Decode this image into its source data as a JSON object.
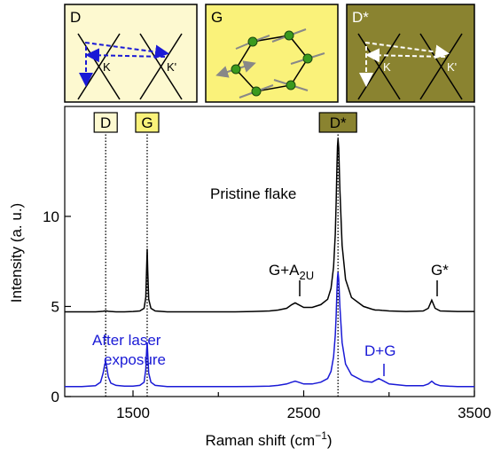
{
  "insets": [
    {
      "label": "D",
      "k": "K",
      "k2": "K'"
    },
    {
      "label": "G"
    },
    {
      "label": "D*",
      "k": "K",
      "k2": "K'"
    }
  ],
  "chart_data": {
    "type": "line",
    "x": [
      1100,
      1200,
      1280,
      1310,
      1325,
      1335,
      1340,
      1345,
      1355,
      1370,
      1400,
      1450,
      1500,
      1540,
      1565,
      1575,
      1580,
      1583,
      1586,
      1592,
      1605,
      1630,
      1700,
      1800,
      1900,
      2000,
      2100,
      2200,
      2300,
      2350,
      2400,
      2430,
      2450,
      2470,
      2500,
      2550,
      2600,
      2640,
      2660,
      2675,
      2685,
      2690,
      2695,
      2698,
      2701,
      2705,
      2712,
      2725,
      2745,
      2780,
      2850,
      2900,
      2920,
      2940,
      2960,
      3000,
      3100,
      3200,
      3230,
      3250,
      3270,
      3300,
      3400,
      3500
    ],
    "series": [
      {
        "color": "#000000",
        "values": [
          4.7,
          4.7,
          4.7,
          4.72,
          4.73,
          4.75,
          4.75,
          4.75,
          4.73,
          4.72,
          4.7,
          4.7,
          4.72,
          4.75,
          4.9,
          5.5,
          7.2,
          8.2,
          7.0,
          5.4,
          4.9,
          4.75,
          4.7,
          4.7,
          4.7,
          4.7,
          4.7,
          4.72,
          4.75,
          4.8,
          4.9,
          5.1,
          5.2,
          5.1,
          4.95,
          4.95,
          5.1,
          5.4,
          6.0,
          7.2,
          9.0,
          10.8,
          12.8,
          13.9,
          14.3,
          13.8,
          11.5,
          8.4,
          6.5,
          5.5,
          5.0,
          4.85,
          4.8,
          4.8,
          4.78,
          4.75,
          4.72,
          4.75,
          4.9,
          5.35,
          4.9,
          4.75,
          4.72,
          4.72
        ]
      },
      {
        "color": "#1a1ad6",
        "values": [
          0.55,
          0.55,
          0.6,
          0.8,
          1.3,
          1.8,
          1.9,
          1.7,
          1.1,
          0.75,
          0.62,
          0.58,
          0.58,
          0.62,
          0.8,
          1.5,
          2.6,
          3.0,
          2.4,
          1.3,
          0.8,
          0.62,
          0.55,
          0.55,
          0.55,
          0.55,
          0.55,
          0.56,
          0.58,
          0.62,
          0.7,
          0.8,
          0.85,
          0.8,
          0.7,
          0.7,
          0.8,
          1.0,
          1.4,
          2.2,
          3.4,
          4.5,
          5.9,
          6.6,
          6.9,
          6.5,
          5.0,
          3.0,
          1.8,
          1.2,
          0.85,
          0.8,
          0.9,
          1.0,
          0.9,
          0.7,
          0.6,
          0.6,
          0.7,
          0.85,
          0.7,
          0.6,
          0.55,
          0.55
        ]
      }
    ],
    "peak_markers": [
      {
        "label": "D",
        "x": 1340,
        "color": "#fdf9d0"
      },
      {
        "label": "G",
        "x": 1583,
        "color": "#faf27a"
      },
      {
        "label": "D*",
        "x": 2701,
        "color": "#8a8330"
      }
    ],
    "annotations": [
      {
        "text": "Pristine flake",
        "color": "#000000"
      },
      {
        "text": "G+A",
        "sub": "2U",
        "color": "#000000"
      },
      {
        "text": "G*",
        "color": "#000000"
      },
      {
        "lines": [
          "After laser",
          "exposure"
        ],
        "color": "#1a1ad6"
      },
      {
        "text": "D+G",
        "color": "#1a1ad6"
      }
    ],
    "xlim": [
      1100,
      3500
    ],
    "xticks": [
      1500,
      2500,
      3500
    ],
    "xminor": [
      2000,
      3000
    ],
    "ylim": [
      0,
      16.1
    ],
    "yticks": [
      0,
      5,
      10
    ],
    "xlabel": {
      "text": "Raman shift (cm",
      "sup": "−1",
      "end": ")"
    },
    "ylabel": "Intensity (a. u.)"
  }
}
